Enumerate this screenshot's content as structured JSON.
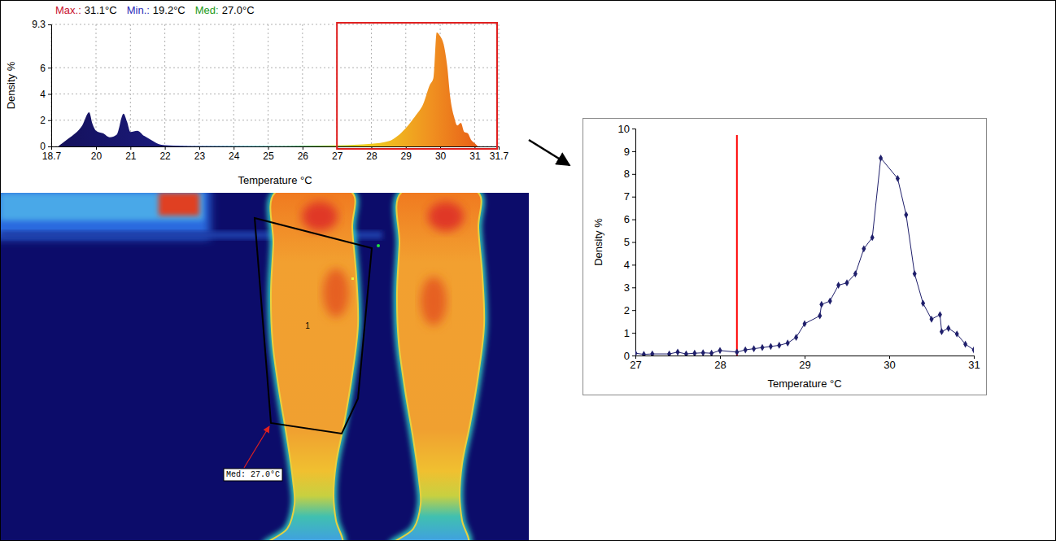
{
  "chart_data": [
    {
      "type": "area",
      "annotations": [
        {
          "label": "Max.:",
          "value": "31.1°C",
          "color": "#c8102e"
        },
        {
          "label": "Min.:",
          "value": "19.2°C",
          "color": "#2b2bb8"
        },
        {
          "label": "Med:",
          "value": "27.0°C",
          "color": "#1a9a1a"
        }
      ],
      "x_label": "Temperature °C",
      "y_label": "Density %",
      "x": [
        18.9,
        19.0,
        19.2,
        19.4,
        19.6,
        19.8,
        19.9,
        20.0,
        20.2,
        20.4,
        20.6,
        20.8,
        20.9,
        21.0,
        21.2,
        21.4,
        21.6,
        21.8,
        22.0,
        22.5,
        23,
        24,
        25,
        26,
        27,
        27.5,
        28,
        28.5,
        29,
        29.3,
        29.5,
        29.7,
        29.8,
        29.9,
        30.0,
        30.1,
        30.2,
        30.3,
        30.4,
        30.5,
        30.6,
        30.7,
        30.8,
        30.9,
        31.0,
        31.1
      ],
      "values": [
        0,
        0.2,
        0.6,
        1.0,
        1.6,
        2.6,
        1.7,
        1.2,
        1.0,
        0.7,
        0.9,
        2.5,
        1.9,
        1.1,
        1.2,
        0.8,
        0.5,
        0.2,
        0.1,
        0.05,
        0.03,
        0.03,
        0.03,
        0.05,
        0.08,
        0.12,
        0.2,
        0.4,
        1.4,
        2.4,
        3.2,
        4.7,
        5.2,
        8.7,
        8.4,
        7.8,
        6.2,
        3.6,
        2.3,
        1.6,
        1.8,
        1.1,
        1.0,
        0.5,
        0.25,
        0
      ],
      "xlim": [
        18.7,
        31.7
      ],
      "ylim": [
        0,
        9.3
      ],
      "xticks": [
        18.7,
        20,
        21,
        22,
        23,
        24,
        25,
        26,
        27,
        28,
        29,
        30,
        31,
        31.7
      ],
      "yticks": [
        0,
        2,
        4,
        6,
        9.3
      ],
      "grid": true,
      "highlight": {
        "x": [
          27,
          31.7
        ],
        "color": "#e02020"
      }
    },
    {
      "type": "line",
      "x_label": "Temperature °C",
      "y_label": "Density %",
      "x": [
        27.0,
        27.1,
        27.2,
        27.4,
        27.5,
        27.6,
        27.7,
        27.8,
        27.9,
        28.0,
        28.2,
        28.3,
        28.4,
        28.5,
        28.6,
        28.7,
        28.8,
        28.9,
        29.0,
        29.18,
        29.2,
        29.3,
        29.4,
        29.5,
        29.6,
        29.7,
        29.8,
        29.9,
        30.1,
        30.2,
        30.3,
        30.4,
        30.5,
        30.6,
        30.62,
        30.7,
        30.8,
        30.9,
        31.0
      ],
      "values": [
        0.1,
        0.05,
        0.07,
        0.07,
        0.15,
        0.07,
        0.1,
        0.12,
        0.1,
        0.22,
        0.15,
        0.25,
        0.3,
        0.35,
        0.4,
        0.45,
        0.55,
        0.8,
        1.4,
        1.75,
        2.25,
        2.4,
        3.1,
        3.2,
        3.6,
        4.7,
        5.2,
        8.7,
        7.8,
        6.2,
        3.6,
        2.3,
        1.6,
        1.8,
        1.05,
        1.2,
        0.95,
        0.5,
        0.25
      ],
      "color": "#1f1f6b",
      "marker": "diamond",
      "xlim": [
        27,
        31
      ],
      "ylim": [
        0,
        10
      ],
      "xticks": [
        27,
        28,
        29,
        30,
        31
      ],
      "yticks": [
        0,
        1,
        2,
        3,
        4,
        5,
        6,
        7,
        8,
        9,
        10
      ],
      "grid": false,
      "reference_line": {
        "x": 28.2,
        "color": "#ff0000"
      }
    }
  ],
  "thermal_image": {
    "roi_label": "1",
    "median_label": "Med: 27.0°C"
  }
}
